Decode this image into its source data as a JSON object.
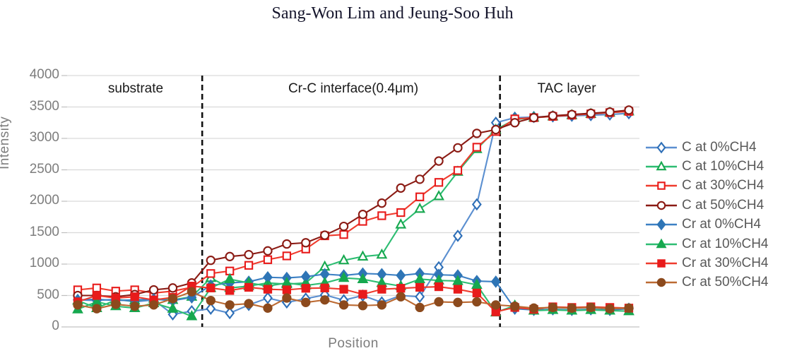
{
  "page": {
    "title": "Sang-Won Lim and Jeung-Soo Huh"
  },
  "chart_data": {
    "type": "line",
    "title": "",
    "xlabel": "Position",
    "ylabel": "Intensity",
    "ylim": [
      0,
      4000
    ],
    "yticks": [
      0,
      500,
      1000,
      1500,
      2000,
      2500,
      3000,
      3500,
      4000
    ],
    "grid": true,
    "legend_position": "right",
    "x_axis_note": "no x tick labels shown; 30 evenly spaced points",
    "x": [
      1,
      2,
      3,
      4,
      5,
      6,
      7,
      8,
      9,
      10,
      11,
      12,
      13,
      14,
      15,
      16,
      17,
      18,
      19,
      20,
      21,
      22,
      23,
      24,
      25,
      26,
      27,
      28,
      29,
      30
    ],
    "region_dividers_between_x": [
      7.55,
      23.22
    ],
    "annotations": [
      {
        "label": "substrate"
      },
      {
        "label": "Cr-C interface(0.4μm)"
      },
      {
        "label": "TAC layer"
      }
    ],
    "series": [
      {
        "name": "C at 0%CH4",
        "marker": "diamond",
        "fill": "open",
        "color": "#2e6fb7",
        "line_color": "#5b8fd0",
        "values": [
          430,
          420,
          440,
          400,
          430,
          200,
          250,
          290,
          220,
          350,
          460,
          390,
          450,
          510,
          425,
          500,
          390,
          500,
          480,
          950,
          1450,
          1950,
          3250,
          3330,
          3340,
          3350,
          3360,
          3370,
          3380,
          3400
        ]
      },
      {
        "name": "C at 10%CH4",
        "marker": "triangle",
        "fill": "open",
        "color": "#16a84f",
        "line_color": "#2dbd72",
        "values": [
          420,
          300,
          430,
          420,
          450,
          430,
          480,
          780,
          620,
          650,
          700,
          680,
          700,
          960,
          1060,
          1120,
          1150,
          1630,
          1880,
          2080,
          2470,
          2830,
          3140,
          3300,
          3330,
          3350,
          3370,
          3390,
          3410,
          3430
        ]
      },
      {
        "name": "C at 30%CH4",
        "marker": "square",
        "fill": "open",
        "color": "#e81b1b",
        "line_color": "#ef3b2d",
        "values": [
          590,
          620,
          570,
          590,
          540,
          570,
          630,
          850,
          890,
          980,
          1070,
          1130,
          1240,
          1450,
          1470,
          1680,
          1770,
          1820,
          2070,
          2300,
          2490,
          2860,
          3110,
          3310,
          3330,
          3350,
          3370,
          3390,
          3410,
          3430
        ]
      },
      {
        "name": "C at 50%CH4",
        "marker": "circle",
        "fill": "open",
        "color": "#8b1b14",
        "line_color": "#8b1b14",
        "values": [
          500,
          500,
          480,
          515,
          590,
          620,
          700,
          1060,
          1120,
          1150,
          1210,
          1320,
          1340,
          1460,
          1600,
          1790,
          1970,
          2210,
          2350,
          2640,
          2850,
          3080,
          3140,
          3250,
          3330,
          3360,
          3380,
          3400,
          3420,
          3450
        ]
      },
      {
        "name": "Cr at 0%CH4",
        "marker": "diamond",
        "fill": "filled",
        "color": "#2e75b6",
        "line_color": "#3c80c4",
        "values": [
          430,
          440,
          420,
          430,
          440,
          420,
          470,
          660,
          700,
          720,
          790,
          780,
          800,
          840,
          820,
          850,
          840,
          820,
          850,
          830,
          820,
          730,
          720,
          290,
          270,
          280,
          270,
          280,
          270,
          290
        ]
      },
      {
        "name": "Cr at 10%CH4",
        "marker": "triangle",
        "fill": "filled",
        "color": "#16a84f",
        "line_color": "#2dbd72",
        "values": [
          280,
          400,
          330,
          300,
          380,
          290,
          170,
          620,
          760,
          700,
          650,
          700,
          660,
          700,
          780,
          760,
          700,
          650,
          760,
          740,
          730,
          670,
          230,
          340,
          260,
          270,
          260,
          270,
          260,
          250
        ]
      },
      {
        "name": "Cr at 30%CH4",
        "marker": "square",
        "fill": "filled",
        "color": "#e81b1b",
        "line_color": "#ef3b2d",
        "values": [
          400,
          500,
          460,
          480,
          430,
          470,
          650,
          620,
          580,
          630,
          600,
          590,
          615,
          620,
          600,
          520,
          600,
          615,
          630,
          640,
          600,
          540,
          240,
          310,
          280,
          320,
          310,
          320,
          310,
          300
        ]
      },
      {
        "name": "Cr at 50%CH4",
        "marker": "circle",
        "fill": "filled",
        "color": "#8c4a1d",
        "line_color": "#bc6a32",
        "values": [
          350,
          290,
          360,
          330,
          350,
          450,
          560,
          420,
          350,
          370,
          300,
          460,
          390,
          430,
          350,
          340,
          350,
          480,
          310,
          400,
          390,
          400,
          350,
          330,
          300,
          310,
          300,
          310,
          290,
          300
        ]
      }
    ],
    "colors": {
      "gridline": "#d9d9d9",
      "zero_line": "#c4c4c4",
      "tick_mark": "#bfbfbf",
      "axis_text": "#7d7d7d",
      "legend_text": "#595959",
      "annotation_text": "#1a1a1a",
      "divider": "#111111"
    }
  }
}
